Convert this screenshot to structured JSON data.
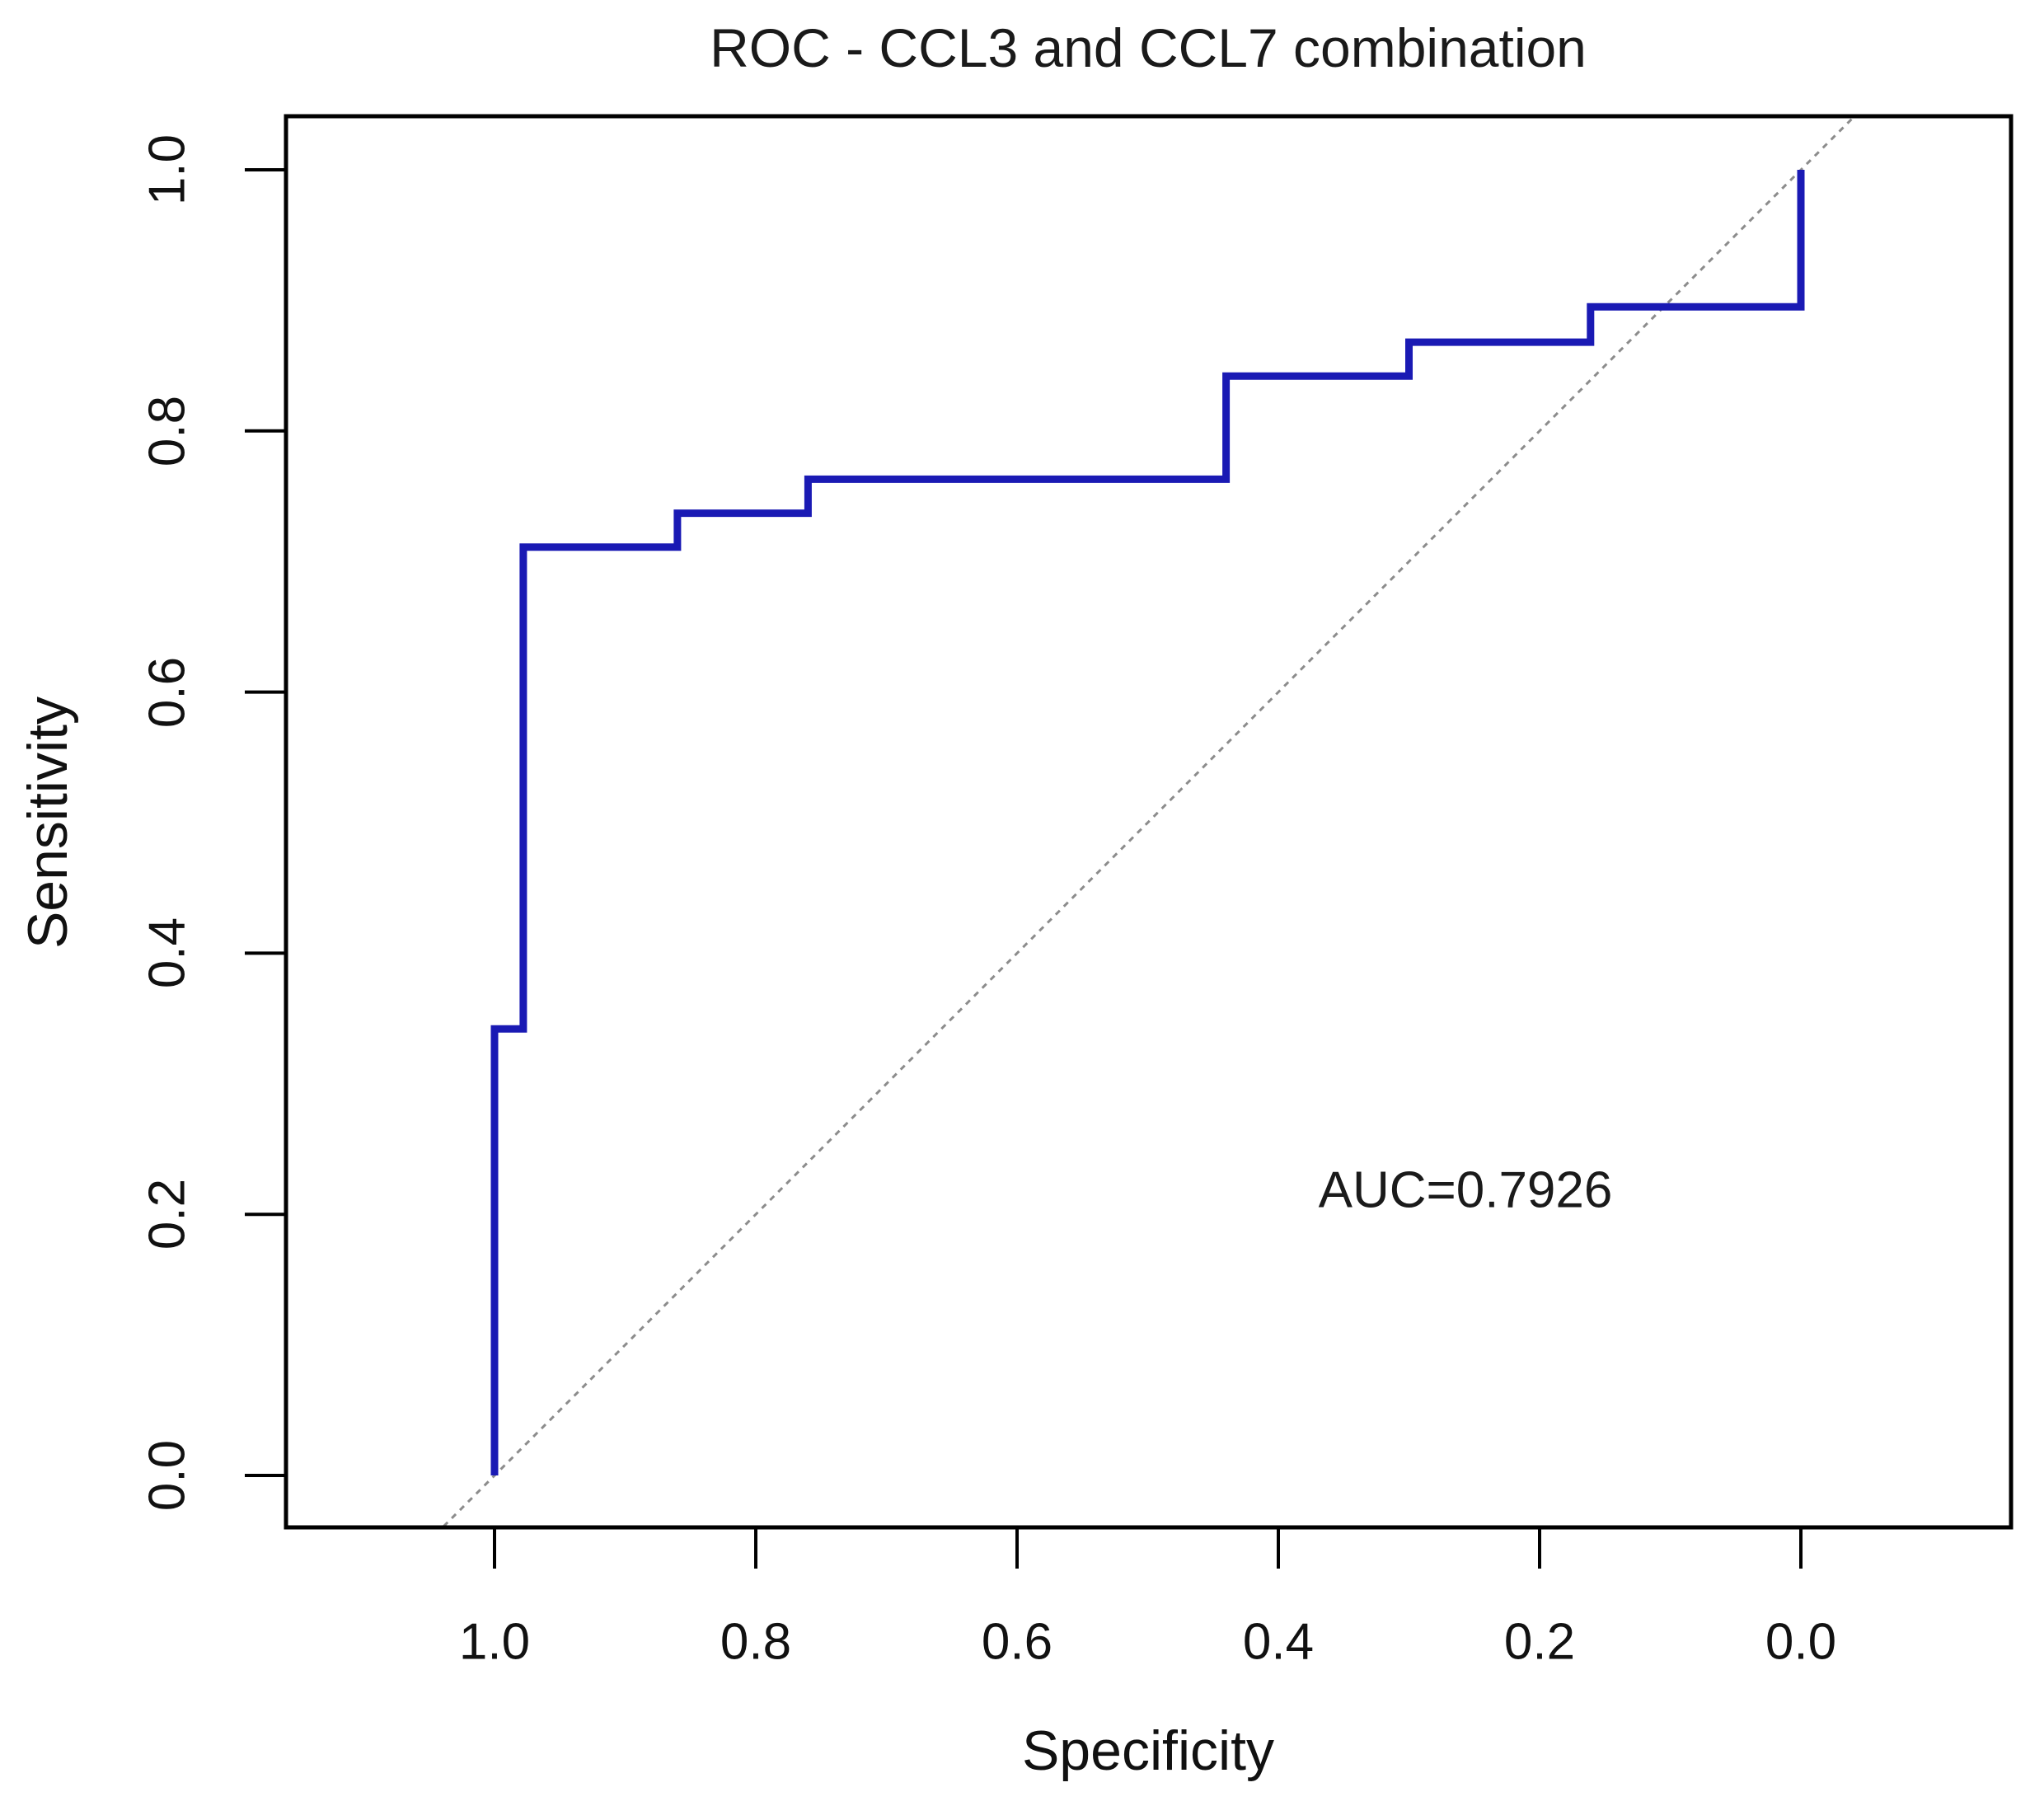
{
  "title": "ROC - CCL3 and CCL7 combination",
  "axes": {
    "x_label": "Specificity",
    "y_label": "Sensitivity",
    "x_ticks": [
      "1.0",
      "0.8",
      "0.6",
      "0.4",
      "0.2",
      "0.0"
    ],
    "y_ticks": [
      "0.0",
      "0.2",
      "0.4",
      "0.6",
      "0.8",
      "1.0"
    ]
  },
  "annotation": {
    "auc_label": "AUC=0.7926"
  },
  "colors": {
    "curve": "#1a1ab4",
    "diagonal": "#8c8c8c",
    "axis": "#000000",
    "background": "#ffffff"
  },
  "chart_data": {
    "type": "line",
    "title": "ROC - CCL3 and CCL7 combination",
    "xlabel": "Specificity",
    "ylabel": "Sensitivity",
    "x_axis_reversed": true,
    "xlim": [
      1.16,
      -0.16
    ],
    "ylim": [
      -0.039,
      1.041
    ],
    "grid": false,
    "legend": "none",
    "auc": 0.7926,
    "series": [
      {
        "name": "ROC curve (CCL3 + CCL7 combination)",
        "style": "step",
        "points_spec_sens": [
          [
            1.0,
            0.0
          ],
          [
            1.0,
            0.342
          ],
          [
            0.978,
            0.342
          ],
          [
            0.978,
            0.711
          ],
          [
            0.86,
            0.711
          ],
          [
            0.86,
            0.737
          ],
          [
            0.76,
            0.737
          ],
          [
            0.76,
            0.763
          ],
          [
            0.44,
            0.763
          ],
          [
            0.44,
            0.842
          ],
          [
            0.3,
            0.842
          ],
          [
            0.3,
            0.868
          ],
          [
            0.161,
            0.868
          ],
          [
            0.161,
            0.895
          ],
          [
            0.0,
            0.895
          ],
          [
            0.0,
            1.0
          ]
        ]
      },
      {
        "name": "chance line",
        "style": "diagonal-reference",
        "points_spec_sens": [
          [
            1.039,
            -0.039
          ],
          [
            -0.041,
            1.041
          ]
        ]
      }
    ]
  }
}
